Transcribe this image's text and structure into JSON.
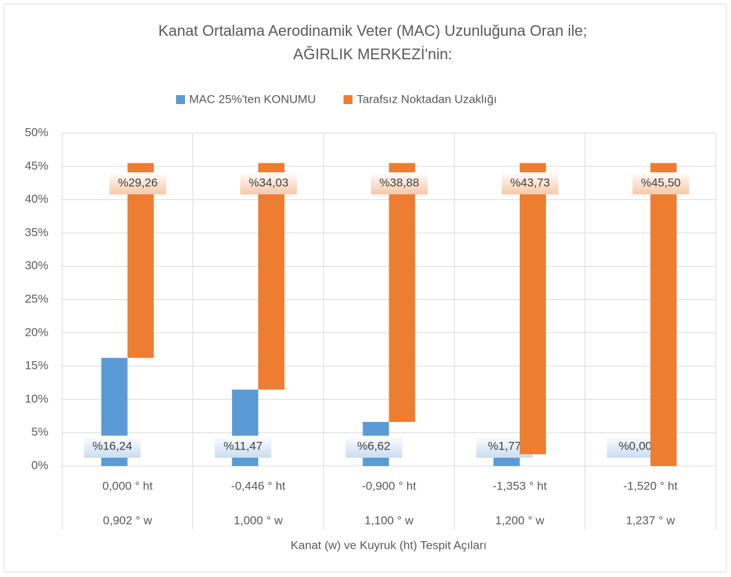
{
  "chart_data": {
    "type": "bar",
    "stacked": true,
    "title": [
      "Kanat Ortalama Aerodinamik Veter (MAC) Uzunluğuna Oran ile;",
      "AĞIRLIK MERKEZİ'nin:"
    ],
    "x_label": "Kanat (w) ve Kuyruk (ht) Tespit Açıları",
    "categories": [
      [
        "0,000 ° ht",
        "0,902 ° w"
      ],
      [
        "-0,446 ° ht",
        "1,000 ° w"
      ],
      [
        "-0,900 ° ht",
        "1,100 ° w"
      ],
      [
        "-1,353 ° ht",
        "1,200 ° w"
      ],
      [
        "-1,520 ° ht",
        "1,237 ° w"
      ]
    ],
    "series": [
      {
        "name": "MAC 25%'ten KONUMU",
        "color": "#5b9bd5",
        "values": [
          16.24,
          11.47,
          6.62,
          1.77,
          0.0
        ],
        "value_labels": [
          "%16,24",
          "%11,47",
          "%6,62",
          "%1,77",
          "%0,00"
        ]
      },
      {
        "name": "Tarafsız Noktadan Uzaklığı",
        "color": "#ed7d31",
        "values": [
          29.26,
          34.03,
          38.88,
          43.73,
          45.5
        ],
        "value_labels": [
          "%29,26",
          "%34,03",
          "%38,88",
          "%43,73",
          "%45,50"
        ]
      }
    ],
    "ylim": [
      0,
      50
    ],
    "yticks": [
      {
        "value": 0,
        "label": "0%"
      },
      {
        "value": 5,
        "label": "5%"
      },
      {
        "value": 10,
        "label": "10%"
      },
      {
        "value": 15,
        "label": "15%"
      },
      {
        "value": 20,
        "label": "20%"
      },
      {
        "value": 25,
        "label": "25%"
      },
      {
        "value": 30,
        "label": "30%"
      },
      {
        "value": 35,
        "label": "35%"
      },
      {
        "value": 40,
        "label": "40%"
      },
      {
        "value": 45,
        "label": "45%"
      },
      {
        "value": 50,
        "label": "50%"
      }
    ],
    "grid": true,
    "legend": "top"
  }
}
